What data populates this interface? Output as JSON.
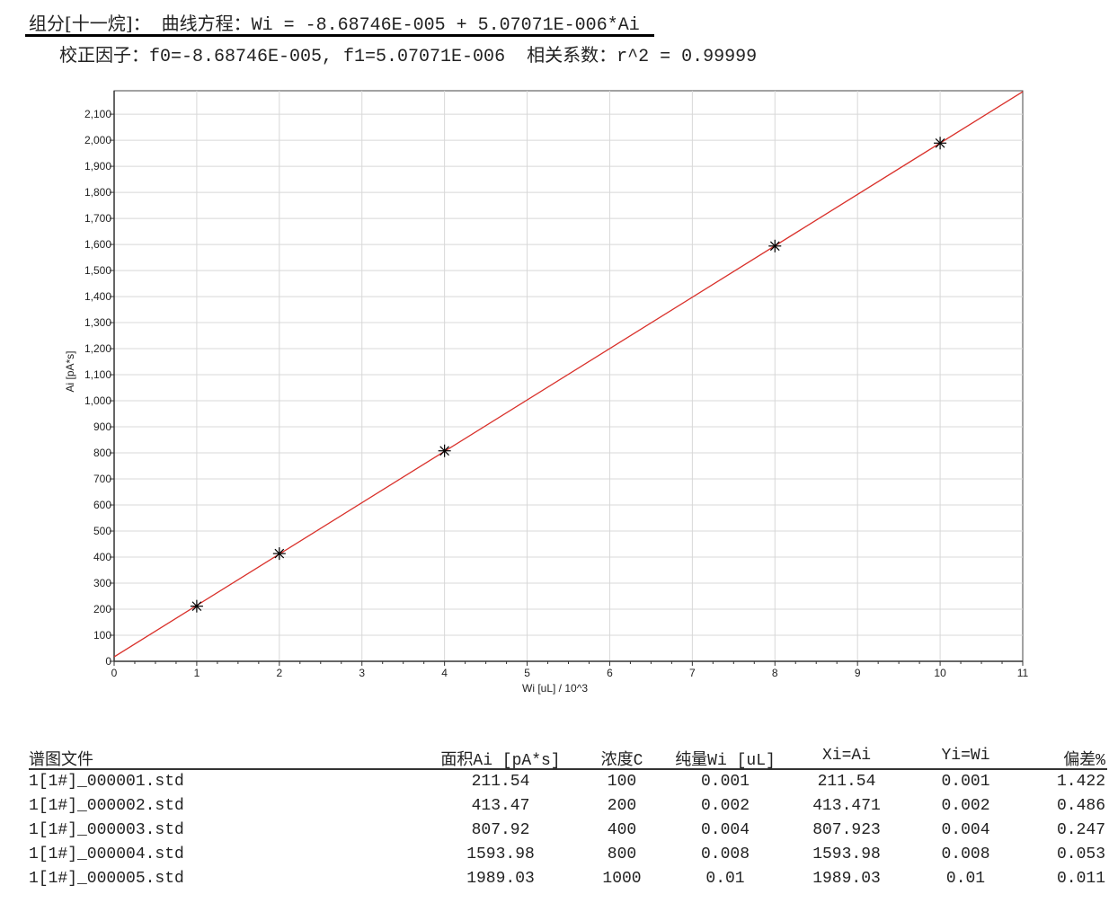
{
  "header": {
    "component_label": "组分[十一烷]：",
    "equation_label": "曲线方程：",
    "equation": "Wi = -8.68746E-005 + 5.07071E-006*Ai",
    "factors_label": "校正因子：",
    "factors": "f0=-8.68746E-005, f1=5.07071E-006",
    "corr_label": "相关系数：",
    "corr": "r^2 = 0.99999"
  },
  "chart_data": {
    "type": "scatter",
    "xlabel": "Wi [uL] / 10^3",
    "ylabel": "Ai [pA*s]",
    "xlim": [
      0,
      11
    ],
    "ylim": [
      0,
      2190
    ],
    "xticks": [
      "0",
      "1",
      "2",
      "3",
      "4",
      "5",
      "6",
      "7",
      "8",
      "9",
      "10",
      "11"
    ],
    "yticks": [
      "0",
      "100",
      "200",
      "300",
      "400",
      "500",
      "600",
      "700",
      "800",
      "900",
      "1,000",
      "1,100",
      "1,200",
      "1,300",
      "1,400",
      "1,500",
      "1,600",
      "1,700",
      "1,800",
      "1,900",
      "2,000",
      "2,100"
    ],
    "grid": true,
    "points": {
      "x": [
        1,
        2,
        4,
        8,
        10
      ],
      "y": [
        211.54,
        413.47,
        807.92,
        1593.98,
        1989.03
      ]
    },
    "fit_line": {
      "f0": -8.68746e-05,
      "f1": 5.07071e-06
    },
    "colors": {
      "line": "#d9302a",
      "marker": "#000000",
      "grid": "#d8d8d8"
    }
  },
  "table": {
    "headers": [
      "谱图文件",
      "面积Ai [pA*s]",
      "浓度C",
      "纯量Wi [uL]",
      "Xi=Ai",
      "Yi=Wi",
      "偏差%"
    ],
    "rows": [
      [
        "1[1#]_000001.std",
        "211.54",
        "100",
        "0.001",
        "211.54",
        "0.001",
        "1.422"
      ],
      [
        "1[1#]_000002.std",
        "413.47",
        "200",
        "0.002",
        "413.471",
        "0.002",
        "0.486"
      ],
      [
        "1[1#]_000003.std",
        "807.92",
        "400",
        "0.004",
        "807.923",
        "0.004",
        "0.247"
      ],
      [
        "1[1#]_000004.std",
        "1593.98",
        "800",
        "0.008",
        "1593.98",
        "0.008",
        "0.053"
      ],
      [
        "1[1#]_000005.std",
        "1989.03",
        "1000",
        "0.01",
        "1989.03",
        "0.01",
        "0.011"
      ]
    ]
  }
}
